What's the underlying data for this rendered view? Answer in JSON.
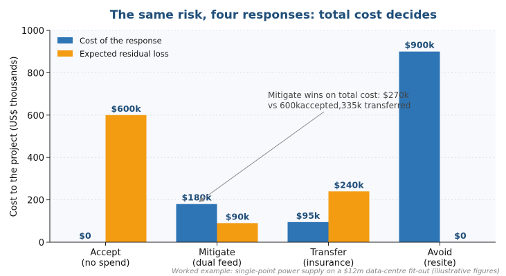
{
  "chart_data": {
    "type": "bar",
    "title": "The same risk, four responses: total cost decides",
    "ylabel": "Cost to the project (US$ thousands)",
    "xlabel": "",
    "ylim": [
      0,
      1000
    ],
    "yticks": [
      0,
      200,
      400,
      600,
      800,
      1000
    ],
    "categories": [
      [
        "Accept",
        "(no spend)"
      ],
      [
        "Mitigate",
        "(dual feed)"
      ],
      [
        "Transfer",
        "(insurance)"
      ],
      [
        "Avoid",
        "(resite)"
      ]
    ],
    "series": [
      {
        "name": "Cost of the response",
        "color": "#2e75b6",
        "values": [
          0,
          180,
          95,
          900
        ],
        "labels": [
          "$0",
          "$180k",
          "$95k",
          "$900k"
        ]
      },
      {
        "name": "Expected residual loss",
        "color": "#f39c12",
        "values": [
          600,
          90,
          240,
          0
        ],
        "labels": [
          "$600k",
          "$90k",
          "$240k",
          "$0"
        ]
      }
    ],
    "grid": "horizontal dotted",
    "legend_position": "top-left",
    "annotation": {
      "lines": [
        "Mitigate wins on total cost: $270k",
        "vs 600kaccepted,335k transferred"
      ],
      "points_to": {
        "category": 1,
        "series": 0
      }
    },
    "footnote": "Worked example: single-point power supply on a $12m data-centre fit-out (illustrative figures)",
    "colors": {
      "title": "#1f4e79",
      "label_text": "#1f4e79",
      "plot_background": "#f7f9fc"
    }
  }
}
